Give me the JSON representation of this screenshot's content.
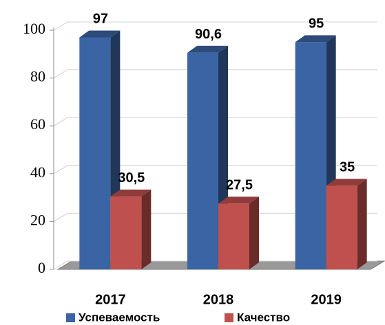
{
  "chart_data": {
    "type": "bar3d",
    "categories": [
      "2017",
      "2018",
      "2019"
    ],
    "series": [
      {
        "name": "Успеваемость",
        "color": "#3a64a3",
        "values": [
          97,
          90.6,
          95
        ],
        "value_labels": [
          "97",
          "90,6",
          "95"
        ]
      },
      {
        "name": "Качество",
        "color": "#c0504d",
        "values": [
          30.5,
          27.5,
          35
        ],
        "value_labels": [
          "30,5",
          "27,5",
          "35"
        ]
      }
    ],
    "ylim": [
      0,
      100
    ],
    "yticks": [
      0,
      20,
      40,
      60,
      80,
      100
    ],
    "grid": true,
    "legend": "bottom"
  }
}
